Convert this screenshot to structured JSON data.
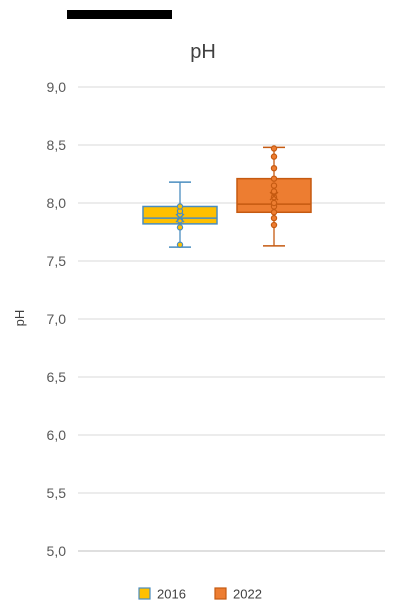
{
  "chart_data": {
    "type": "box",
    "title": "pH",
    "ylabel": "pH",
    "xlabel": "",
    "ylim": [
      5.0,
      9.0
    ],
    "yticks": [
      "5,0",
      "5,5",
      "6,0",
      "6,5",
      "7,0",
      "7,5",
      "8,0",
      "8,5",
      "9,0"
    ],
    "ytick_values": [
      5.0,
      5.5,
      6.0,
      6.5,
      7.0,
      7.5,
      8.0,
      8.5,
      9.0
    ],
    "grid": true,
    "legend_position": "bottom",
    "series": [
      {
        "name": "2016",
        "color": "#FFC000",
        "edge_color": "#4A8DBF",
        "min": 7.62,
        "q1": 7.82,
        "median": 7.87,
        "q3": 7.97,
        "max": 8.18,
        "mean": 7.87,
        "points": [
          7.64,
          7.79,
          7.85,
          7.9,
          7.93,
          7.97
        ]
      },
      {
        "name": "2022",
        "color": "#ED7D31",
        "edge_color": "#C55A11",
        "min": 7.63,
        "q1": 7.92,
        "median": 7.99,
        "q3": 8.21,
        "max": 8.48,
        "mean": 8.06,
        "points": [
          7.81,
          7.87,
          7.92,
          7.97,
          8.0,
          8.05,
          8.1,
          8.15,
          8.21,
          8.3,
          8.4,
          8.47
        ]
      }
    ]
  }
}
